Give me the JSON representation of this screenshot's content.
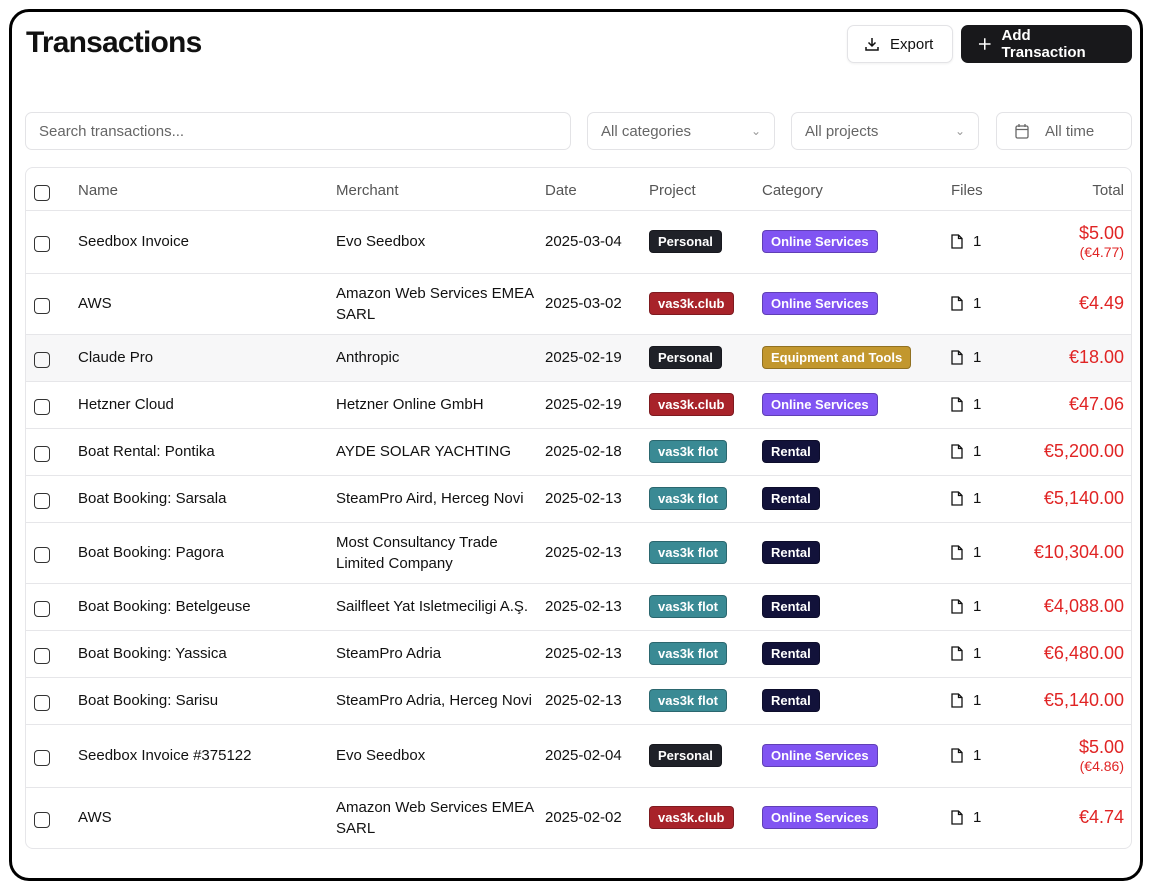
{
  "header": {
    "title": "Transactions",
    "export_label": "Export",
    "add_label": "Add Transaction"
  },
  "filters": {
    "search_placeholder": "Search transactions...",
    "category": "All categories",
    "project": "All projects",
    "time": "All time"
  },
  "columns": {
    "name": "Name",
    "merchant": "Merchant",
    "date": "Date",
    "project": "Project",
    "category": "Category",
    "files": "Files",
    "total": "Total"
  },
  "colors": {
    "Personal": "#1f2128",
    "vas3k.club": "#a8232a",
    "vas3k flot": "#3a8a94",
    "Online Services": "#8054f2",
    "Equipment and Tools": "#c2972e",
    "Rental": "#12123a",
    "amount": "#e02424"
  },
  "rows": [
    {
      "name": "Seedbox Invoice",
      "merchant": "Evo Seedbox",
      "date": "2025-03-04",
      "project": "Personal",
      "category": "Online Services",
      "files": "1",
      "total": "$5.00",
      "converted": "(€4.77)"
    },
    {
      "name": "AWS",
      "merchant": "Amazon Web Services EMEA SARL",
      "date": "2025-03-02",
      "project": "vas3k.club",
      "category": "Online Services",
      "files": "1",
      "total": "€4.49"
    },
    {
      "name": "Claude Pro",
      "merchant": "Anthropic",
      "date": "2025-02-19",
      "project": "Personal",
      "category": "Equipment and Tools",
      "files": "1",
      "total": "€18.00"
    },
    {
      "name": "Hetzner Cloud",
      "merchant": "Hetzner Online GmbH",
      "date": "2025-02-19",
      "project": "vas3k.club",
      "category": "Online Services",
      "files": "1",
      "total": "€47.06"
    },
    {
      "name": "Boat Rental: Pontika",
      "merchant": "AYDE SOLAR YACHTING",
      "date": "2025-02-18",
      "project": "vas3k flot",
      "category": "Rental",
      "files": "1",
      "total": "€5,200.00"
    },
    {
      "name": "Boat Booking: Sarsala",
      "merchant": "SteamPro Aird, Herceg Novi",
      "date": "2025-02-13",
      "project": "vas3k flot",
      "category": "Rental",
      "files": "1",
      "total": "€5,140.00"
    },
    {
      "name": "Boat Booking: Pagora",
      "merchant": "Most Consultancy Trade Limited Company",
      "date": "2025-02-13",
      "project": "vas3k flot",
      "category": "Rental",
      "files": "1",
      "total": "€10,304.00"
    },
    {
      "name": "Boat Booking: Betelgeuse",
      "merchant": "Sailfleet Yat Isletmeciligi A.Ş.",
      "date": "2025-02-13",
      "project": "vas3k flot",
      "category": "Rental",
      "files": "1",
      "total": "€4,088.00"
    },
    {
      "name": "Boat Booking: Yassica",
      "merchant": "SteamPro Adria",
      "date": "2025-02-13",
      "project": "vas3k flot",
      "category": "Rental",
      "files": "1",
      "total": "€6,480.00"
    },
    {
      "name": "Boat Booking: Sarisu",
      "merchant": "SteamPro Adria, Herceg Novi",
      "date": "2025-02-13",
      "project": "vas3k flot",
      "category": "Rental",
      "files": "1",
      "total": "€5,140.00"
    },
    {
      "name": "Seedbox Invoice #375122",
      "merchant": "Evo Seedbox",
      "date": "2025-02-04",
      "project": "Personal",
      "category": "Online Services",
      "files": "1",
      "total": "$5.00",
      "converted": "(€4.86)"
    },
    {
      "name": "AWS",
      "merchant": "Amazon Web Services EMEA SARL",
      "date": "2025-02-02",
      "project": "vas3k.club",
      "category": "Online Services",
      "files": "1",
      "total": "€4.74"
    }
  ]
}
